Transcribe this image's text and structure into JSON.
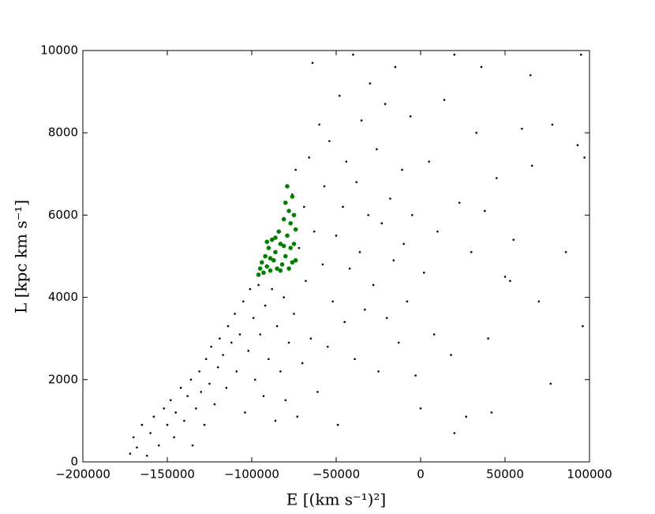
{
  "chart_data": {
    "type": "scatter",
    "xlabel": "E [(km s⁻¹)²]",
    "ylabel": "L [kpc km s⁻¹]",
    "xlim": [
      -200000,
      100000
    ],
    "xticks": [
      {
        "value": -200000,
        "label": "−200000"
      },
      {
        "value": -150000,
        "label": "−150000"
      },
      {
        "value": -100000,
        "label": "−100000"
      },
      {
        "value": -50000,
        "label": "−50000"
      },
      0,
      50000,
      100000
    ],
    "ylim": [
      0,
      10000
    ],
    "yticks": [
      0,
      2000,
      4000,
      6000,
      8000,
      10000
    ],
    "series": [
      {
        "color": "#000000",
        "x": [
          -172000,
          -170000,
          -168000,
          -165000,
          -162000,
          -160000,
          -158000,
          -155000,
          -152000,
          -150000,
          -148000,
          -146000,
          -145000,
          -142000,
          -140000,
          -138000,
          -136000,
          -135000,
          -133000,
          -131000,
          -130000,
          -128000,
          -127000,
          -125000,
          -124000,
          -122000,
          -120000,
          -119000,
          -117000,
          -115000,
          -114000,
          -112000,
          -110000,
          -109000,
          -107000,
          -105000,
          -104000,
          -102000,
          -101000,
          -99000,
          -98000,
          -96000,
          -95000,
          -93000,
          -92000,
          -90000,
          -88000,
          -86000,
          -85000,
          -83000,
          -81000,
          -80000,
          -78000,
          -76000,
          -75000,
          -74000,
          -73000,
          -72000,
          -70000,
          -69000,
          -68000,
          -66000,
          -65000,
          -64000,
          -63000,
          -61000,
          -60000,
          -58000,
          -57000,
          -55000,
          -54000,
          -52000,
          -50000,
          -49000,
          -48000,
          -46000,
          -45000,
          -44000,
          -42000,
          -40000,
          -39000,
          -38000,
          -36000,
          -35000,
          -33000,
          -31000,
          -30000,
          -28000,
          -26000,
          -25000,
          -23000,
          -21000,
          -20000,
          -18000,
          -16000,
          -15000,
          -13000,
          -11000,
          -10000,
          -8000,
          -6000,
          -5000,
          -3000,
          0,
          2000,
          5000,
          8000,
          10000,
          14000,
          18000,
          20000,
          20000,
          23000,
          27000,
          30000,
          33000,
          36000,
          40000,
          42000,
          45000,
          50000,
          55000,
          60000,
          66000,
          70000,
          77000,
          78000,
          86000,
          93000,
          96000,
          97000,
          95000,
          65000,
          53000,
          38000
        ],
        "values": [
          200,
          600,
          350,
          900,
          150,
          700,
          1100,
          400,
          1300,
          900,
          1500,
          600,
          1200,
          1800,
          1000,
          1600,
          2000,
          400,
          1300,
          2200,
          1700,
          900,
          2500,
          1900,
          2800,
          1400,
          2300,
          3000,
          2600,
          1800,
          3300,
          2900,
          3600,
          2200,
          3100,
          3900,
          1200,
          2700,
          4200,
          3500,
          2000,
          4300,
          3100,
          1600,
          3800,
          2500,
          4200,
          1000,
          3300,
          2200,
          4000,
          1500,
          2900,
          6500,
          3600,
          7100,
          1100,
          5200,
          2400,
          6200,
          4400,
          7400,
          3000,
          9700,
          5600,
          1700,
          8200,
          4800,
          6700,
          2800,
          7800,
          3900,
          5500,
          900,
          8900,
          6200,
          3400,
          7300,
          4700,
          9900,
          2500,
          6800,
          5100,
          8300,
          3700,
          6000,
          9200,
          4300,
          7600,
          2200,
          5800,
          8700,
          3500,
          6400,
          4900,
          9600,
          2900,
          7100,
          5300,
          3900,
          8400,
          6000,
          2100,
          1300,
          4600,
          7300,
          3100,
          5600,
          8800,
          2600,
          9900,
          700,
          6300,
          1100,
          5100,
          8000,
          9600,
          3000,
          1200,
          6900,
          4500,
          5400,
          8100,
          7200,
          3900,
          1900,
          8200,
          5100,
          7700,
          3300,
          7400,
          9900,
          9400,
          4400,
          6100
        ]
      },
      {
        "color": "#008000",
        "x": [
          -96000,
          -95000,
          -94000,
          -93000,
          -92000,
          -91000,
          -90000,
          -89000,
          -88000,
          -87000,
          -86000,
          -85000,
          -84000,
          -83000,
          -82000,
          -81000,
          -80000,
          -80000,
          -79000,
          -79000,
          -78000,
          -78000,
          -77000,
          -77000,
          -76000,
          -76000,
          -75000,
          -75000,
          -74000,
          -74000,
          -83000,
          -86000,
          -81000,
          -89000,
          -91000
        ],
        "values": [
          4550,
          4700,
          4850,
          4600,
          5000,
          4750,
          5200,
          4650,
          5400,
          4900,
          5100,
          4700,
          5600,
          5300,
          4800,
          5900,
          5000,
          6300,
          5500,
          6700,
          4700,
          6100,
          5200,
          5800,
          6450,
          4850,
          5300,
          6000,
          5650,
          4900,
          4650,
          5450,
          5250,
          4950,
          5350
        ]
      }
    ]
  }
}
